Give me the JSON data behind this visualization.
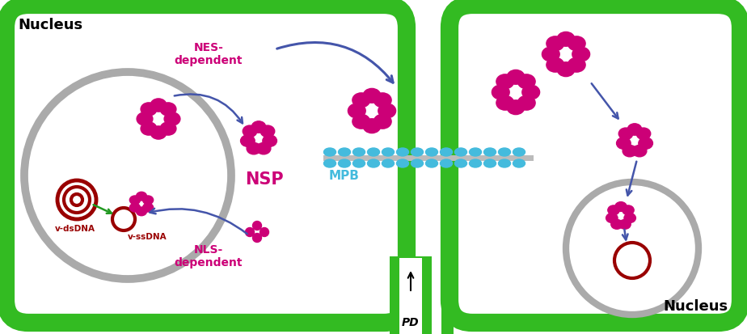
{
  "bg_color": "#ffffff",
  "cell_wall_color": "#33bb22",
  "cell_wall_lw": 16,
  "nucleus_color": "#aaaaaa",
  "nucleus_lw": 6,
  "magenta": "#cc0077",
  "cyan": "#44bbdd",
  "dark_red": "#990000",
  "green_arrow": "#229922",
  "purple_arrow": "#4455aa",
  "nucleus_label": "Nucleus",
  "NSP_label": "NSP",
  "MPB_label": "MPB",
  "NES_label": "NES-\ndependent",
  "NLS_label": "NLS-\ndependent",
  "vdsDNA_label": "v-dsDNA",
  "vsssDNA_label": "v-ssDNA",
  "PD_label": "PD"
}
